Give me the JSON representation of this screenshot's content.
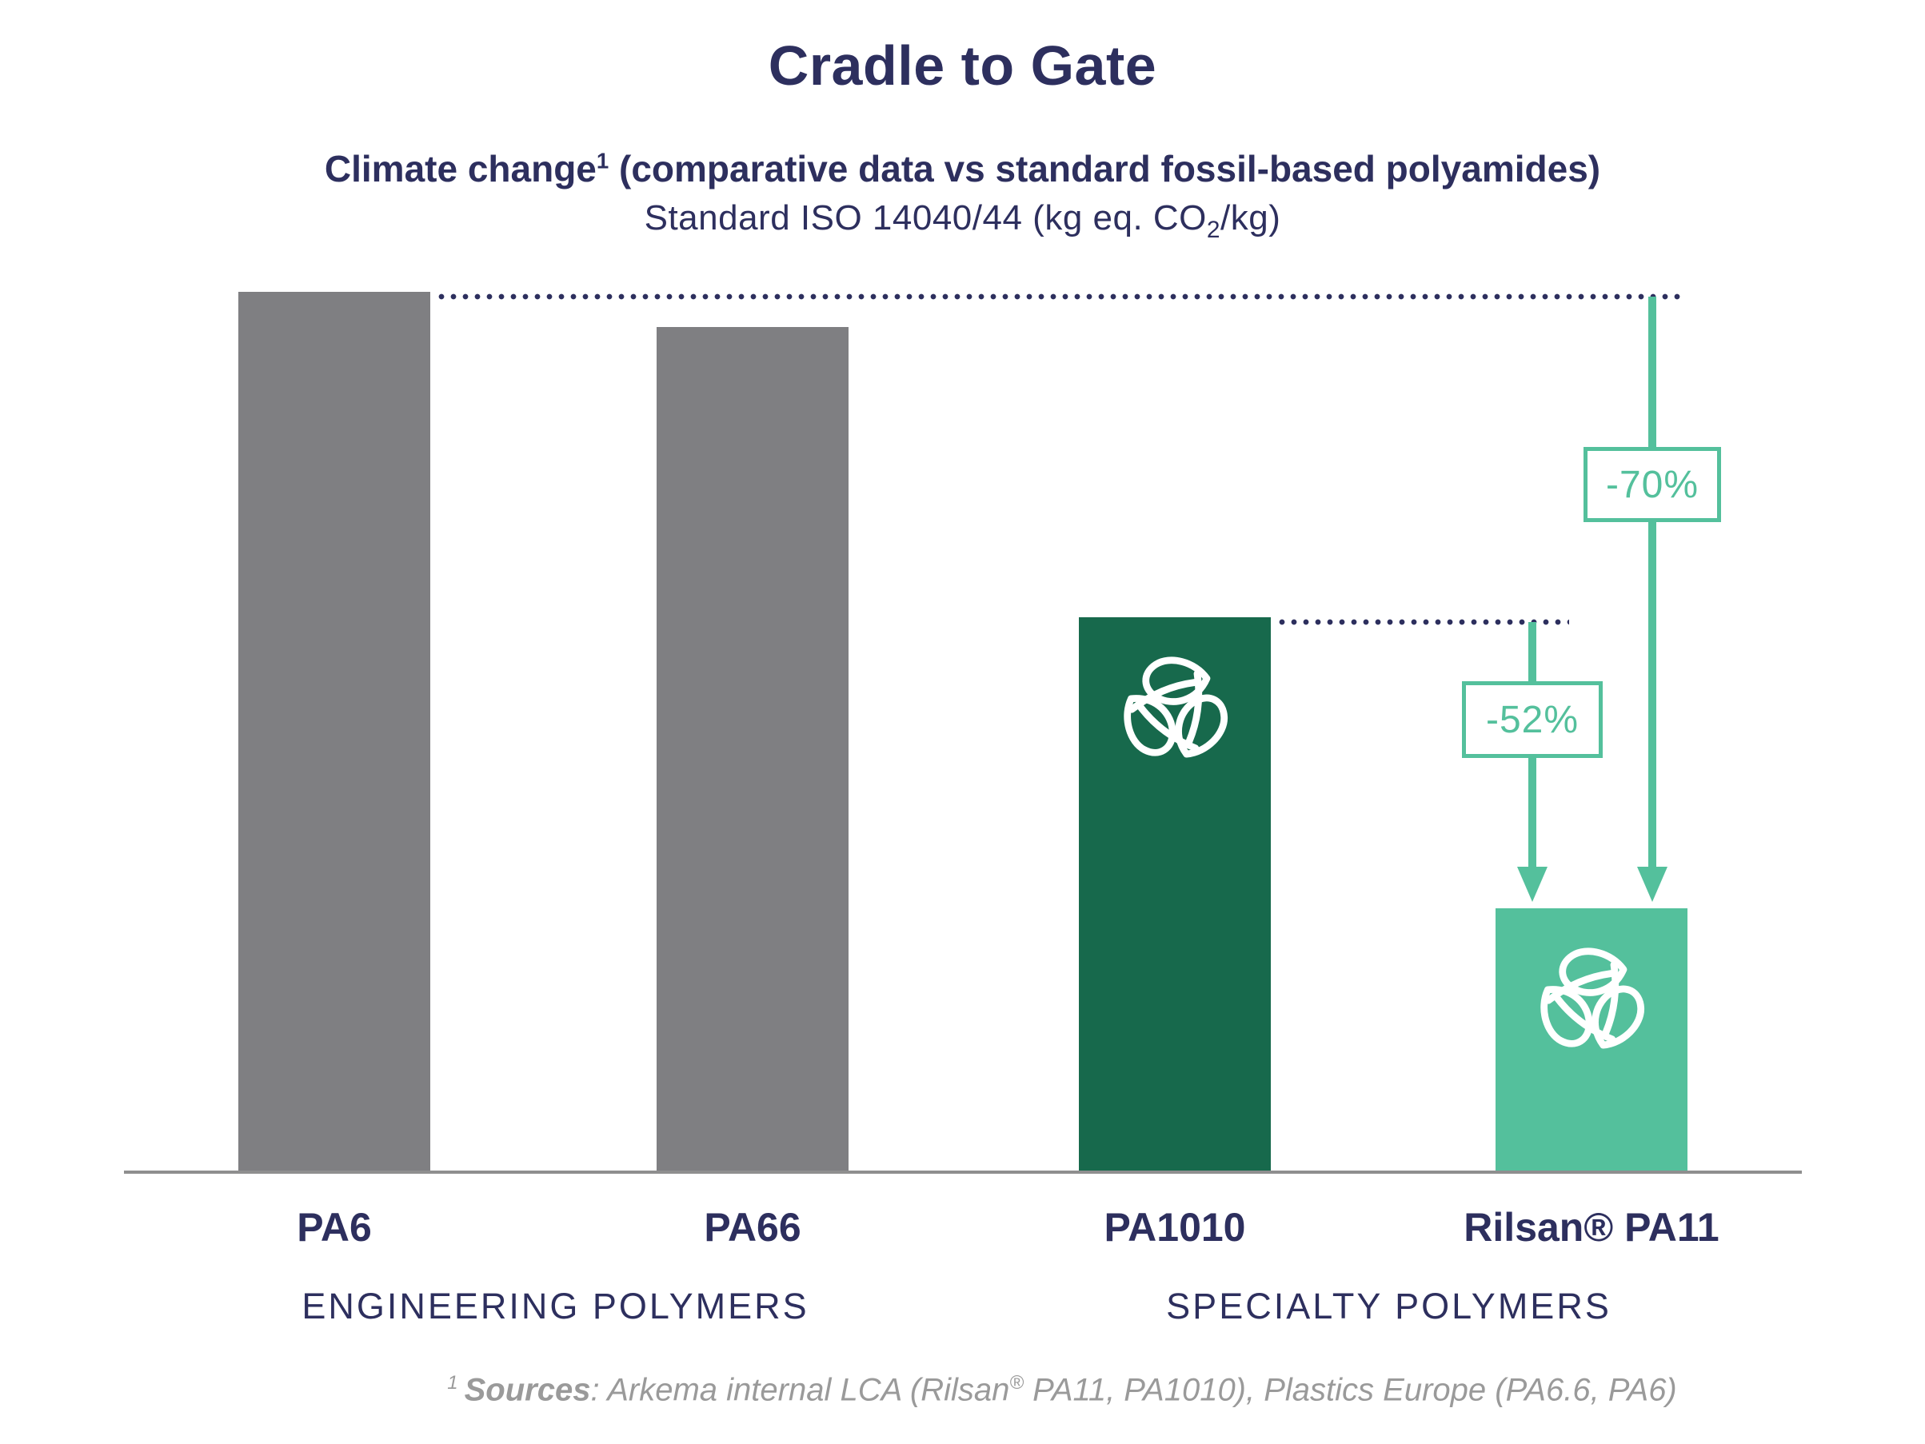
{
  "header": {
    "title": "Cradle to Gate",
    "subtitle1_pre": "Climate change",
    "subtitle1_sup": "1",
    "subtitle1_post": " (comparative data vs standard fossil-based polyamides)",
    "subtitle2_pre": "Standard ISO 14040/44 (kg eq. CO",
    "subtitle2_sub": "2",
    "subtitle2_post": "/kg)"
  },
  "chart_data": {
    "type": "bar",
    "title": "Cradle to Gate",
    "subtitle": "Climate change (comparative data vs standard fossil-based polyamides)",
    "standard": "Standard ISO 14040/44 (kg eq. CO2/kg)",
    "categories": [
      "PA6",
      "PA66",
      "PA1010",
      "Rilsan® PA11"
    ],
    "values": [
      100,
      96,
      63,
      30
    ],
    "value_note": "relative climate-change index, PA6 bar = 100 (no numeric y-axis shown)",
    "ylim": [
      0,
      100
    ],
    "bar_colors": [
      "#7f7f82",
      "#7f7f82",
      "#17694c",
      "#54c09c"
    ],
    "bars_with_leaf_icon": [
      "PA1010",
      "Rilsan® PA11"
    ],
    "groups": [
      {
        "label": "ENGINEERING POLYMERS",
        "categories": [
          "PA6",
          "PA66"
        ]
      },
      {
        "label": "SPECIALTY POLYMERS",
        "categories": [
          "PA1010",
          "Rilsan® PA11"
        ]
      }
    ],
    "annotations": [
      {
        "label": "-70%",
        "from": "PA6",
        "to": "Rilsan® PA11"
      },
      {
        "label": "-52%",
        "from": "PA1010",
        "to": "Rilsan® PA11"
      }
    ],
    "reference_lines": [
      {
        "style": "dotted",
        "at_top_of": "PA6"
      },
      {
        "style": "dotted",
        "at_top_of": "PA1010"
      }
    ],
    "grid": false,
    "legend": false
  },
  "footnote": {
    "sup_num": "1",
    "sources_label": "Sources",
    "part1": ": Arkema internal LCA (Rilsan",
    "reg_mark": "®",
    "part2": " PA11, PA1010), Plastics Europe (PA6.6, PA6)"
  },
  "colors": {
    "navy": "#2d2f5e",
    "green": "#54c09c",
    "dark_green": "#17694c",
    "bar_gray": "#7f7f82",
    "axis_gray": "#8f8f8f",
    "footnote_gray": "#9a9a9a",
    "white": "#ffffff"
  }
}
